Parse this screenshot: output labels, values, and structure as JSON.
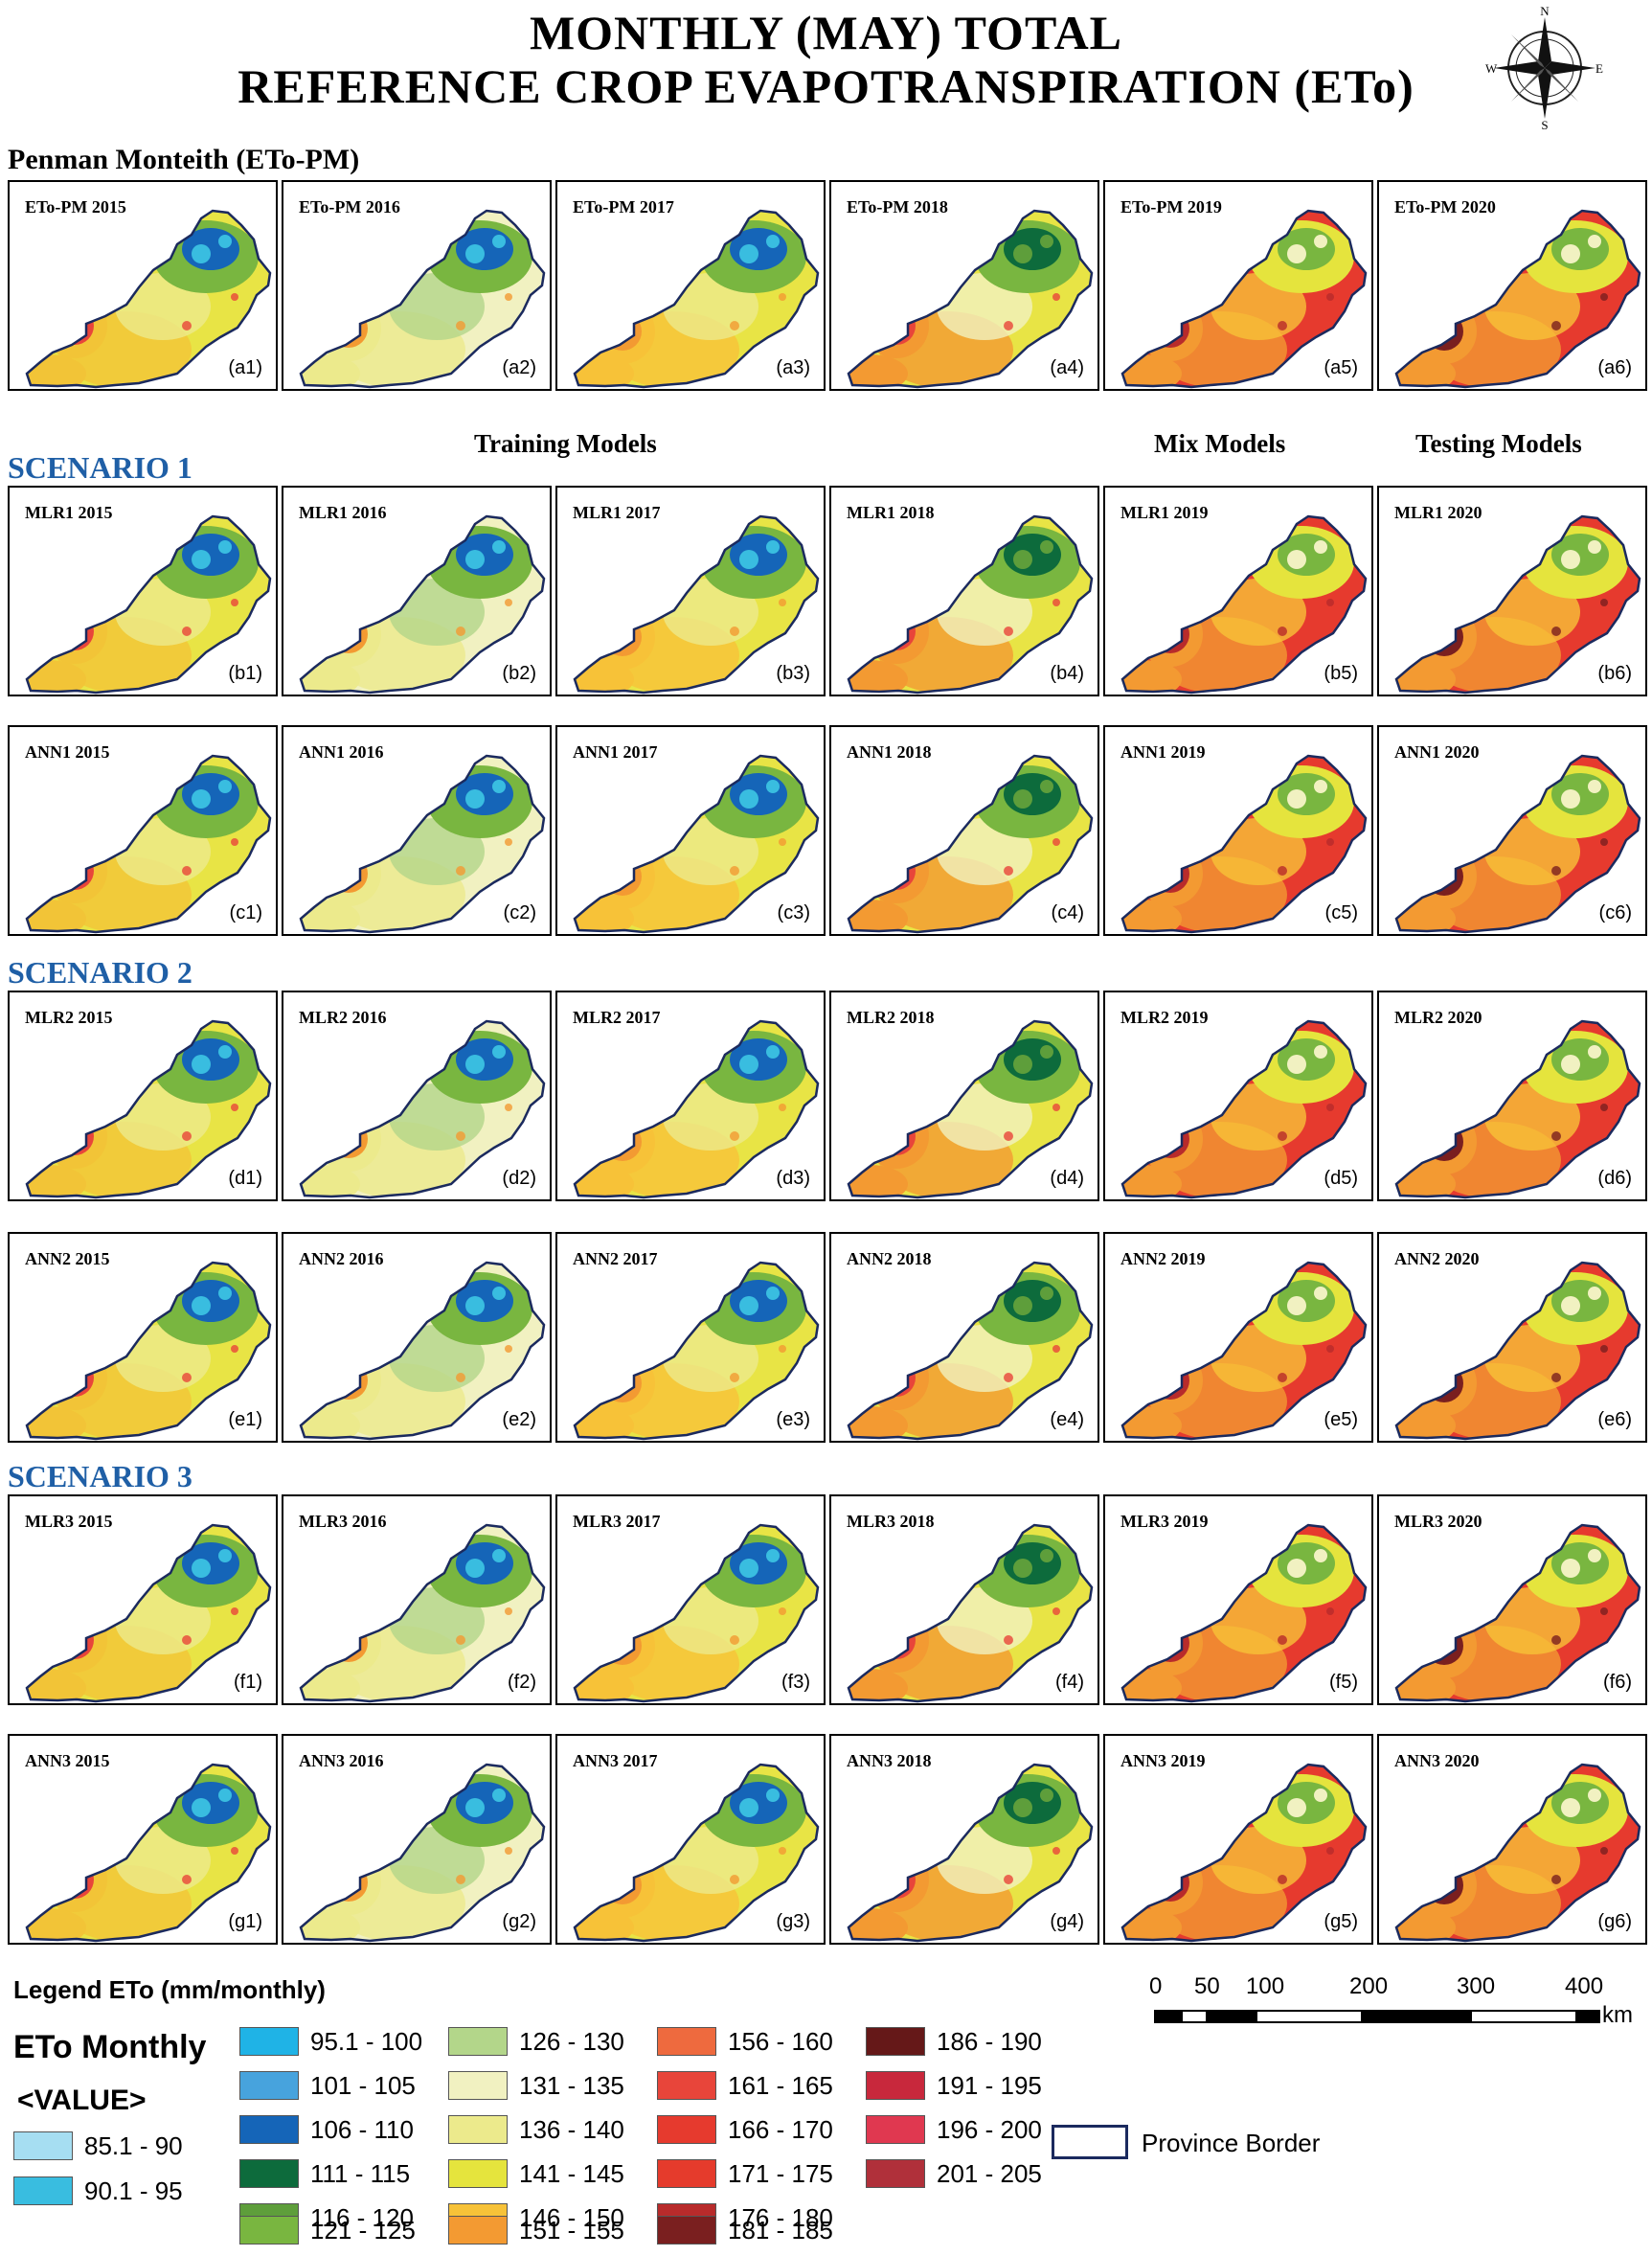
{
  "title": {
    "line1": "MONTHLY (MAY) TOTAL",
    "line2": "REFERENCE CROP EVAPOTRANSPIRATION (ETo)"
  },
  "compass": {
    "n": "N",
    "s": "S",
    "e": "E",
    "w": "W"
  },
  "pm_heading": "Penman Monteith (ETo-PM)",
  "column_headers": {
    "training": "Training Models",
    "mix": "Mix Models",
    "testing": "Testing Models"
  },
  "scenarios": [
    "SCENARIO 1",
    "SCENARIO 2",
    "SCENARIO 3"
  ],
  "rows": [
    {
      "letter": "a",
      "prefix": "ETo-PM",
      "panels": [
        {
          "title": "ETo-PM 2015",
          "label": "(a1)"
        },
        {
          "title": "ETo-PM 2016",
          "label": "(a2)"
        },
        {
          "title": "ETo-PM 2017",
          "label": "(a3)"
        },
        {
          "title": "ETo-PM 2018",
          "label": "(a4)"
        },
        {
          "title": "ETo-PM 2019",
          "label": "(a5)"
        },
        {
          "title": "ETo-PM 2020",
          "label": "(a6)"
        }
      ]
    },
    {
      "letter": "b",
      "prefix": "MLR1",
      "panels": [
        {
          "title": "MLR1 2015",
          "label": "(b1)"
        },
        {
          "title": "MLR1 2016",
          "label": "(b2)"
        },
        {
          "title": "MLR1 2017",
          "label": "(b3)"
        },
        {
          "title": "MLR1 2018",
          "label": "(b4)"
        },
        {
          "title": "MLR1 2019",
          "label": "(b5)"
        },
        {
          "title": "MLR1 2020",
          "label": "(b6)"
        }
      ]
    },
    {
      "letter": "c",
      "prefix": "ANN1",
      "panels": [
        {
          "title": "ANN1 2015",
          "label": "(c1)"
        },
        {
          "title": "ANN1 2016",
          "label": "(c2)"
        },
        {
          "title": "ANN1 2017",
          "label": "(c3)"
        },
        {
          "title": "ANN1 2018",
          "label": "(c4)"
        },
        {
          "title": "ANN1 2019",
          "label": "(c5)"
        },
        {
          "title": "ANN1 2020",
          "label": "(c6)"
        }
      ]
    },
    {
      "letter": "d",
      "prefix": "MLR2",
      "panels": [
        {
          "title": "MLR2 2015",
          "label": "(d1)"
        },
        {
          "title": "MLR2 2016",
          "label": "(d2)"
        },
        {
          "title": "MLR2 2017",
          "label": "(d3)"
        },
        {
          "title": "MLR2 2018",
          "label": "(d4)"
        },
        {
          "title": "MLR2 2019",
          "label": "(d5)"
        },
        {
          "title": "MLR2 2020",
          "label": "(d6)"
        }
      ]
    },
    {
      "letter": "e",
      "prefix": "ANN2",
      "panels": [
        {
          "title": "ANN2 2015",
          "label": "(e1)"
        },
        {
          "title": "ANN2 2016",
          "label": "(e2)"
        },
        {
          "title": "ANN2 2017",
          "label": "(e3)"
        },
        {
          "title": "ANN2 2018",
          "label": "(e4)"
        },
        {
          "title": "ANN2 2019",
          "label": "(e5)"
        },
        {
          "title": "ANN2 2020",
          "label": "(e6)"
        }
      ]
    },
    {
      "letter": "f",
      "prefix": "MLR3",
      "panels": [
        {
          "title": "MLR3 2015",
          "label": "(f1)"
        },
        {
          "title": "MLR3 2016",
          "label": "(f2)"
        },
        {
          "title": "MLR3 2017",
          "label": "(f3)"
        },
        {
          "title": "MLR3 2018",
          "label": "(f4)"
        },
        {
          "title": "MLR3 2019",
          "label": "(f5)"
        },
        {
          "title": "MLR3 2020",
          "label": "(f6)"
        }
      ]
    },
    {
      "letter": "g",
      "prefix": "ANN3",
      "panels": [
        {
          "title": "ANN3 2015",
          "label": "(g1)"
        },
        {
          "title": "ANN3 2016",
          "label": "(g2)"
        },
        {
          "title": "ANN3 2017",
          "label": "(g3)"
        },
        {
          "title": "ANN3 2018",
          "label": "(g4)"
        },
        {
          "title": "ANN3 2019",
          "label": "(g5)"
        },
        {
          "title": "ANN3 2020",
          "label": "(g6)"
        }
      ]
    }
  ],
  "legend": {
    "title": "Legend ETo (mm/monthly)",
    "main_label": "ETo Monthly",
    "value_label": "<VALUE>",
    "items": [
      {
        "range": "85.1 - 90",
        "color": "#a6def2"
      },
      {
        "range": "90.1 - 95",
        "color": "#39bde0"
      },
      {
        "range": "95.1 - 100",
        "color": "#1fb3e6"
      },
      {
        "range": "101 - 105",
        "color": "#47a3dd"
      },
      {
        "range": "106 - 110",
        "color": "#1565b8"
      },
      {
        "range": "111 - 115",
        "color": "#0d6b3c"
      },
      {
        "range": "116 - 120",
        "color": "#5e9e3b"
      },
      {
        "range": "121 - 125",
        "color": "#79b640"
      },
      {
        "range": "126 - 130",
        "color": "#b3d68a"
      },
      {
        "range": "131 - 135",
        "color": "#f1f1c1"
      },
      {
        "range": "136 - 140",
        "color": "#ecea8c"
      },
      {
        "range": "141 - 145",
        "color": "#e5e43d"
      },
      {
        "range": "146 - 150",
        "color": "#f7c238"
      },
      {
        "range": "151 - 155",
        "color": "#f39a32"
      },
      {
        "range": "156 - 160",
        "color": "#ee6a3e"
      },
      {
        "range": "161 - 165",
        "color": "#e8453a"
      },
      {
        "range": "166 - 170",
        "color": "#e63a2e"
      },
      {
        "range": "171 - 175",
        "color": "#e53b2c"
      },
      {
        "range": "176 - 180",
        "color": "#b82b2b"
      },
      {
        "range": "181 - 185",
        "color": "#7a1f1f"
      },
      {
        "range": "186 - 190",
        "color": "#651818"
      },
      {
        "range": "191 - 195",
        "color": "#c8283c"
      },
      {
        "range": "196 - 200",
        "color": "#e03850"
      },
      {
        "range": "201 - 205",
        "color": "#b0303a"
      }
    ],
    "border_label": "Province Border"
  },
  "scale_bar": {
    "ticks": [
      "0",
      "50",
      "100",
      "200",
      "300",
      "400"
    ],
    "unit": "km"
  }
}
